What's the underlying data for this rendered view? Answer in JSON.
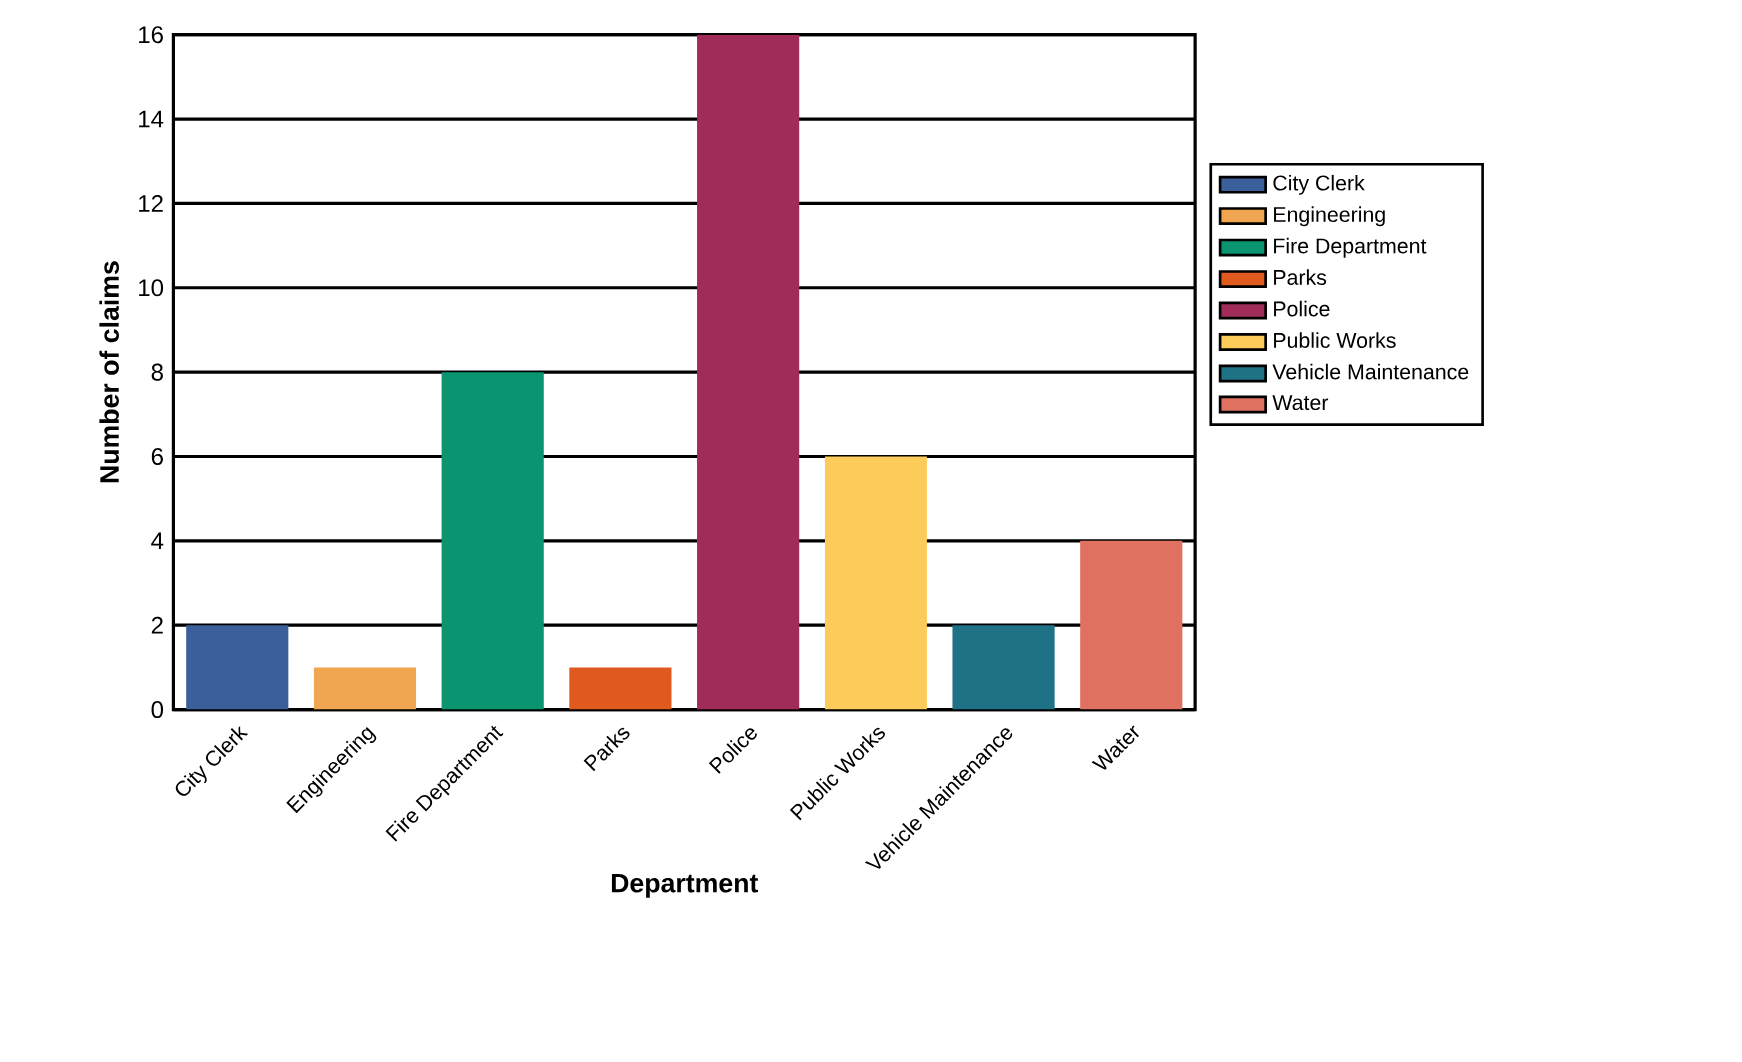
{
  "chart_data": {
    "type": "bar",
    "xlabel": "Department",
    "ylabel": "Number of claims",
    "categories": [
      "City Clerk",
      "Engineering",
      "Fire Department",
      "Parks",
      "Police",
      "Public Works",
      "Vehicle Maintenance",
      "Water"
    ],
    "series": [
      {
        "name": "City Clerk",
        "color": "#3a5f9a",
        "values": [
          2,
          null,
          null,
          null,
          null,
          null,
          null,
          null
        ]
      },
      {
        "name": "Engineering",
        "color": "#f0a650",
        "values": [
          null,
          1,
          null,
          null,
          null,
          null,
          null,
          null
        ]
      },
      {
        "name": "Fire Department",
        "color": "#0a9470",
        "values": [
          null,
          null,
          8,
          null,
          null,
          null,
          null,
          null
        ]
      },
      {
        "name": "Parks",
        "color": "#e05a1f",
        "values": [
          null,
          null,
          null,
          1,
          null,
          null,
          null,
          null
        ]
      },
      {
        "name": "Police",
        "color": "#a02c5a",
        "values": [
          null,
          null,
          null,
          null,
          16,
          null,
          null,
          null
        ]
      },
      {
        "name": "Public Works",
        "color": "#fccb5a",
        "values": [
          null,
          null,
          null,
          null,
          null,
          6,
          null,
          null
        ]
      },
      {
        "name": "Vehicle Maintenance",
        "color": "#1f7186",
        "values": [
          null,
          null,
          null,
          null,
          null,
          null,
          2,
          null
        ]
      },
      {
        "name": "Water",
        "color": "#e07060",
        "values": [
          null,
          null,
          null,
          null,
          null,
          null,
          null,
          4
        ]
      }
    ],
    "ylim": [
      0,
      16
    ],
    "yticks": [
      0,
      2,
      4,
      6,
      8,
      10,
      12,
      14,
      16
    ],
    "grid": "y",
    "legend": "right"
  }
}
